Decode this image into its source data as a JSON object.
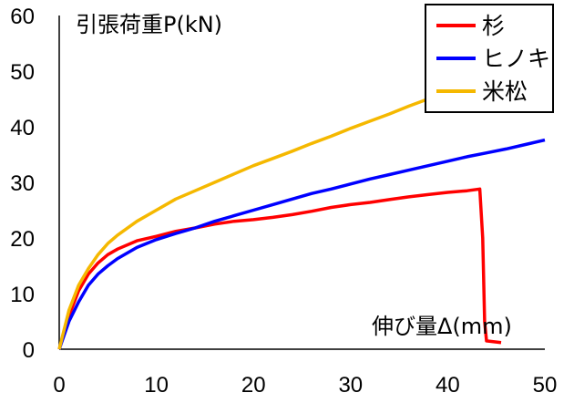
{
  "chart_data": {
    "type": "line",
    "title": "",
    "xlabel": "伸び量Δ(mm)",
    "ylabel": "引張荷重P(kN)",
    "xlim": [
      0,
      50
    ],
    "ylim": [
      0,
      60
    ],
    "x_ticks": [
      0,
      10,
      20,
      30,
      40,
      50
    ],
    "y_ticks": [
      0,
      10,
      20,
      30,
      40,
      50,
      60
    ],
    "grid": false,
    "legend_position": "top-right",
    "series": [
      {
        "name": "杉",
        "color": "#ff0000",
        "points": [
          [
            0,
            0
          ],
          [
            1,
            6
          ],
          [
            2,
            10.5
          ],
          [
            3,
            13.5
          ],
          [
            4,
            15.5
          ],
          [
            5,
            17
          ],
          [
            6,
            18
          ],
          [
            8,
            19.5
          ],
          [
            10,
            20.3
          ],
          [
            12,
            21.2
          ],
          [
            14,
            21.8
          ],
          [
            16,
            22.5
          ],
          [
            18,
            23
          ],
          [
            20,
            23.3
          ],
          [
            22,
            23.7
          ],
          [
            24,
            24.2
          ],
          [
            26,
            24.8
          ],
          [
            28,
            25.5
          ],
          [
            30,
            26
          ],
          [
            32,
            26.4
          ],
          [
            34,
            26.9
          ],
          [
            36,
            27.4
          ],
          [
            38,
            27.8
          ],
          [
            40,
            28.2
          ],
          [
            42,
            28.5
          ],
          [
            43.3,
            28.8
          ],
          [
            43.6,
            20
          ],
          [
            43.8,
            5
          ],
          [
            44,
            1.5
          ],
          [
            45.5,
            1.2
          ]
        ]
      },
      {
        "name": "ヒノキ",
        "color": "#0000ff",
        "points": [
          [
            0,
            0
          ],
          [
            1,
            5
          ],
          [
            2,
            8.5
          ],
          [
            3,
            11.5
          ],
          [
            4,
            13.5
          ],
          [
            5,
            15
          ],
          [
            6,
            16.3
          ],
          [
            8,
            18.3
          ],
          [
            10,
            19.7
          ],
          [
            12,
            20.8
          ],
          [
            14,
            21.8
          ],
          [
            16,
            23
          ],
          [
            18,
            24
          ],
          [
            20,
            25
          ],
          [
            22,
            26
          ],
          [
            24,
            27
          ],
          [
            26,
            28
          ],
          [
            28,
            28.8
          ],
          [
            30,
            29.7
          ],
          [
            32,
            30.6
          ],
          [
            34,
            31.4
          ],
          [
            36,
            32.2
          ],
          [
            38,
            33
          ],
          [
            40,
            33.8
          ],
          [
            42,
            34.6
          ],
          [
            44,
            35.3
          ],
          [
            46,
            36
          ],
          [
            48,
            36.8
          ],
          [
            50,
            37.6
          ]
        ]
      },
      {
        "name": "米松",
        "color": "#f5b800",
        "points": [
          [
            0,
            0
          ],
          [
            1,
            7
          ],
          [
            2,
            11.5
          ],
          [
            3,
            14.5
          ],
          [
            4,
            17
          ],
          [
            5,
            19
          ],
          [
            6,
            20.5
          ],
          [
            8,
            23
          ],
          [
            10,
            25
          ],
          [
            12,
            27
          ],
          [
            14,
            28.5
          ],
          [
            16,
            30
          ],
          [
            18,
            31.5
          ],
          [
            20,
            33
          ],
          [
            22,
            34.3
          ],
          [
            24,
            35.6
          ],
          [
            26,
            37
          ],
          [
            28,
            38.3
          ],
          [
            30,
            39.7
          ],
          [
            32,
            41
          ],
          [
            34,
            42.3
          ],
          [
            36,
            43.7
          ],
          [
            38,
            45
          ],
          [
            40,
            46.5
          ],
          [
            42,
            48
          ],
          [
            44,
            49.5
          ],
          [
            46,
            51.3
          ],
          [
            48,
            53.3
          ],
          [
            50,
            55.5
          ]
        ]
      }
    ]
  }
}
